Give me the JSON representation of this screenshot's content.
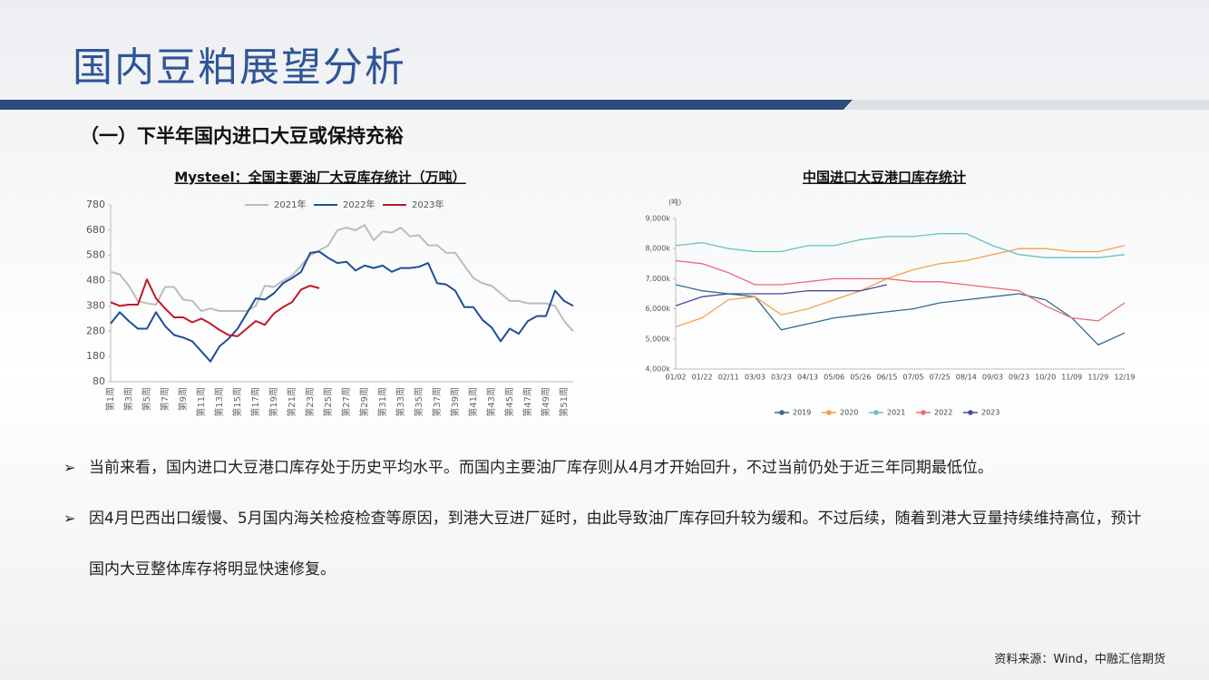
{
  "header": {
    "title": "国内豆粕展望分析"
  },
  "section": {
    "title": "（一）下半年国内进口大豆或保持充裕"
  },
  "chart_data": [
    {
      "type": "line",
      "title": "Mysteel：全国主要油厂大豆库存统计（万吨）",
      "categories": [
        "第1周",
        null,
        "第3周",
        null,
        "第5周",
        null,
        "第7周",
        null,
        "第9周",
        null,
        "第11周",
        null,
        "第13周",
        null,
        "第15周",
        null,
        "第17周",
        null,
        "第19周",
        null,
        "第21周",
        null,
        "第23周",
        null,
        "第25周",
        null,
        "第27周",
        null,
        "第29周",
        null,
        "第31周",
        null,
        "第33周",
        null,
        "第35周",
        null,
        "第37周",
        null,
        "第39周",
        null,
        "第41周",
        null,
        "第43周",
        null,
        "第45周",
        null,
        "第47周",
        null,
        "第49周",
        null,
        "第51周",
        null
      ],
      "series": [
        {
          "name": "2021年",
          "color": "#bcbcbc",
          "values": [
            515,
            505,
            460,
            400,
            390,
            385,
            455,
            455,
            405,
            400,
            360,
            370,
            360,
            360,
            360,
            360,
            380,
            460,
            455,
            480,
            500,
            540,
            580,
            600,
            620,
            680,
            690,
            680,
            700,
            640,
            675,
            670,
            690,
            655,
            660,
            620,
            620,
            590,
            590,
            540,
            490,
            470,
            460,
            430,
            400,
            400,
            390,
            390,
            390,
            380,
            320,
            280
          ]
        },
        {
          "name": "2022年",
          "color": "#1f4e96",
          "values": [
            310,
            355,
            320,
            290,
            290,
            355,
            300,
            265,
            255,
            240,
            200,
            160,
            220,
            250,
            290,
            350,
            410,
            405,
            430,
            470,
            490,
            515,
            590,
            595,
            570,
            550,
            555,
            520,
            540,
            530,
            540,
            515,
            530,
            530,
            535,
            550,
            470,
            465,
            440,
            375,
            375,
            325,
            295,
            240,
            290,
            270,
            320,
            340,
            340,
            440,
            400,
            380
          ]
        },
        {
          "name": "2023年",
          "color": "#c0182a",
          "values": [
            395,
            380,
            385,
            385,
            485,
            410,
            370,
            335,
            335,
            315,
            330,
            310,
            285,
            265,
            260,
            290,
            320,
            305,
            350,
            375,
            395,
            445,
            460,
            450,
            null,
            null,
            null,
            null,
            null,
            null,
            null,
            null,
            null,
            null,
            null,
            null,
            null,
            null,
            null,
            null,
            null,
            null,
            null,
            null,
            null,
            null,
            null,
            null,
            null,
            null,
            null,
            null
          ]
        }
      ],
      "ylim": [
        80,
        780
      ],
      "yticks": [
        80,
        180,
        280,
        380,
        480,
        580,
        680,
        780
      ],
      "grid": false,
      "legend": "top"
    },
    {
      "type": "line",
      "title": "中国进口大豆港口库存统计",
      "y_unit": "(吨)",
      "categories": [
        "01/02",
        "01/22",
        "02/11",
        "03/03",
        "03/23",
        "04/13",
        "05/06",
        "05/26",
        "06/15",
        "07/05",
        "07/25",
        "08/14",
        "09/03",
        "09/23",
        "10/20",
        "11/09",
        "11/29",
        "12/19"
      ],
      "series": [
        {
          "name": "2019",
          "color": "#2e6c94",
          "values": [
            6800000,
            6600000,
            6500000,
            6400000,
            5300000,
            5500000,
            5700000,
            5800000,
            5900000,
            6000000,
            6200000,
            6300000,
            6400000,
            6500000,
            6300000,
            5700000,
            4800000,
            5200000
          ]
        },
        {
          "name": "2020",
          "color": "#f5a04a",
          "values": [
            5400000,
            5700000,
            6300000,
            6400000,
            5800000,
            6000000,
            6300000,
            6600000,
            7000000,
            7300000,
            7500000,
            7600000,
            7800000,
            8000000,
            8000000,
            7900000,
            7900000,
            8100000
          ]
        },
        {
          "name": "2021",
          "color": "#66c2c0",
          "values": [
            8100000,
            8200000,
            8000000,
            7900000,
            7900000,
            8100000,
            8100000,
            8300000,
            8400000,
            8400000,
            8500000,
            8500000,
            8100000,
            7800000,
            7700000,
            7700000,
            7700000,
            7800000
          ]
        },
        {
          "name": "2022",
          "color": "#e86a73",
          "values": [
            7600000,
            7500000,
            7200000,
            6800000,
            6800000,
            6900000,
            7000000,
            7000000,
            7000000,
            6900000,
            6900000,
            6800000,
            6700000,
            6600000,
            6100000,
            5700000,
            5600000,
            6200000
          ]
        },
        {
          "name": "2023",
          "color": "#45499a",
          "values": [
            6100000,
            6400000,
            6500000,
            6500000,
            6500000,
            6600000,
            6600000,
            6600000,
            6800000,
            null,
            null,
            null,
            null,
            null,
            null,
            null,
            null,
            null
          ]
        }
      ],
      "ylim": [
        4000000,
        9000000
      ],
      "yticks": [
        {
          "value": 4000000,
          "label": "4,000k"
        },
        {
          "value": 5000000,
          "label": "5,000k"
        },
        {
          "value": 6000000,
          "label": "6,000k"
        },
        {
          "value": 7000000,
          "label": "7,000k"
        },
        {
          "value": 8000000,
          "label": "8,000k"
        },
        {
          "value": 9000000,
          "label": "9,000k"
        }
      ],
      "grid": false,
      "legend": "bottom"
    }
  ],
  "bullets": [
    "当前来看，国内进口大豆港口库存处于历史平均水平。而国内主要油厂库存则从4月才开始回升，不过当前仍处于近三年同期最低位。",
    "因4月巴西出口缓慢、5月国内海关检疫检查等原因，到港大豆进厂延时，由此导致油厂库存回升较为缓和。不过后续，随着到港大豆量持续维持高位，预计国内大豆整体库存将明显快速修复。"
  ],
  "source": "资料来源：Wind，中融汇信期货"
}
